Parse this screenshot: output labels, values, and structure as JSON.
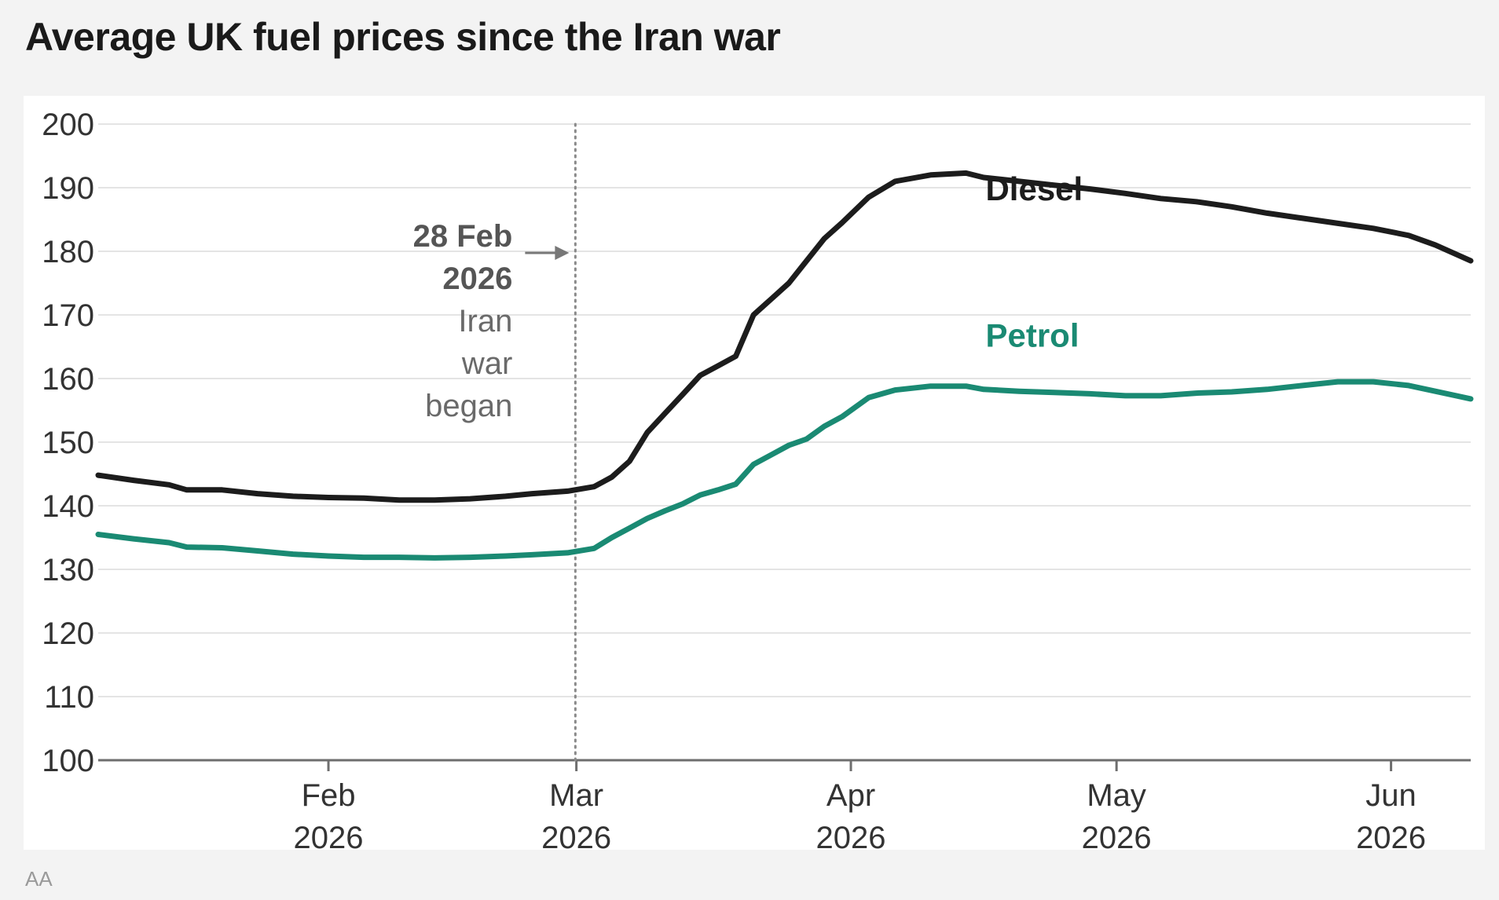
{
  "chart_data": {
    "type": "line",
    "title": "Average UK fuel prices since the Iran war",
    "xlabel": "",
    "ylabel": "",
    "ylim": [
      100,
      200
    ],
    "yticks": [
      100,
      110,
      120,
      130,
      140,
      150,
      160,
      170,
      180,
      190,
      200
    ],
    "grid": true,
    "x_axis_type": "date",
    "xlim": [
      "2026-01-06",
      "2026-06-10"
    ],
    "xticks": [
      {
        "date": "2026-02-01",
        "label_top": "Feb",
        "label_bottom": "2026"
      },
      {
        "date": "2026-03-01",
        "label_top": "Mar",
        "label_bottom": "2026"
      },
      {
        "date": "2026-04-01",
        "label_top": "Apr",
        "label_bottom": "2026"
      },
      {
        "date": "2026-05-01",
        "label_top": "May",
        "label_bottom": "2026"
      },
      {
        "date": "2026-06-01",
        "label_top": "Jun",
        "label_bottom": "2026"
      }
    ],
    "series": [
      {
        "name": "Diesel",
        "color": "#1c1c1c",
        "points": [
          [
            "2026-01-06",
            144.8
          ],
          [
            "2026-01-10",
            144.0
          ],
          [
            "2026-01-14",
            143.3
          ],
          [
            "2026-01-16",
            142.5
          ],
          [
            "2026-01-20",
            142.5
          ],
          [
            "2026-01-24",
            141.9
          ],
          [
            "2026-01-28",
            141.5
          ],
          [
            "2026-02-01",
            141.3
          ],
          [
            "2026-02-05",
            141.2
          ],
          [
            "2026-02-09",
            140.9
          ],
          [
            "2026-02-13",
            140.9
          ],
          [
            "2026-02-17",
            141.1
          ],
          [
            "2026-02-21",
            141.5
          ],
          [
            "2026-02-24",
            141.9
          ],
          [
            "2026-02-28",
            142.3
          ],
          [
            "2026-03-03",
            143.0
          ],
          [
            "2026-03-05",
            144.5
          ],
          [
            "2026-03-07",
            147.0
          ],
          [
            "2026-03-09",
            151.5
          ],
          [
            "2026-03-11",
            154.5
          ],
          [
            "2026-03-13",
            157.5
          ],
          [
            "2026-03-15",
            160.5
          ],
          [
            "2026-03-17",
            162.0
          ],
          [
            "2026-03-19",
            163.5
          ],
          [
            "2026-03-21",
            170.0
          ],
          [
            "2026-03-23",
            172.5
          ],
          [
            "2026-03-25",
            175.0
          ],
          [
            "2026-03-27",
            178.5
          ],
          [
            "2026-03-29",
            182.0
          ],
          [
            "2026-03-31",
            184.5
          ],
          [
            "2026-04-03",
            188.5
          ],
          [
            "2026-04-06",
            191.0
          ],
          [
            "2026-04-10",
            192.0
          ],
          [
            "2026-04-14",
            192.3
          ],
          [
            "2026-04-16",
            191.6
          ],
          [
            "2026-04-20",
            191.0
          ],
          [
            "2026-04-24",
            190.4
          ],
          [
            "2026-04-28",
            189.8
          ],
          [
            "2026-05-02",
            189.1
          ],
          [
            "2026-05-06",
            188.3
          ],
          [
            "2026-05-10",
            187.8
          ],
          [
            "2026-05-14",
            187.0
          ],
          [
            "2026-05-18",
            186.0
          ],
          [
            "2026-05-22",
            185.2
          ],
          [
            "2026-05-26",
            184.4
          ],
          [
            "2026-05-30",
            183.6
          ],
          [
            "2026-06-03",
            182.5
          ],
          [
            "2026-06-06",
            181.0
          ],
          [
            "2026-06-10",
            178.5
          ]
        ]
      },
      {
        "name": "Petrol",
        "color": "#1a8a73",
        "points": [
          [
            "2026-01-06",
            135.5
          ],
          [
            "2026-01-10",
            134.8
          ],
          [
            "2026-01-14",
            134.2
          ],
          [
            "2026-01-16",
            133.5
          ],
          [
            "2026-01-20",
            133.4
          ],
          [
            "2026-01-24",
            132.9
          ],
          [
            "2026-01-28",
            132.4
          ],
          [
            "2026-02-01",
            132.1
          ],
          [
            "2026-02-05",
            131.9
          ],
          [
            "2026-02-09",
            131.9
          ],
          [
            "2026-02-13",
            131.8
          ],
          [
            "2026-02-17",
            131.9
          ],
          [
            "2026-02-21",
            132.1
          ],
          [
            "2026-02-24",
            132.3
          ],
          [
            "2026-02-28",
            132.6
          ],
          [
            "2026-03-03",
            133.3
          ],
          [
            "2026-03-05",
            135.0
          ],
          [
            "2026-03-07",
            136.5
          ],
          [
            "2026-03-09",
            138.0
          ],
          [
            "2026-03-11",
            139.2
          ],
          [
            "2026-03-13",
            140.3
          ],
          [
            "2026-03-15",
            141.7
          ],
          [
            "2026-03-17",
            142.5
          ],
          [
            "2026-03-19",
            143.4
          ],
          [
            "2026-03-21",
            146.5
          ],
          [
            "2026-03-23",
            148.0
          ],
          [
            "2026-03-25",
            149.5
          ],
          [
            "2026-03-27",
            150.5
          ],
          [
            "2026-03-29",
            152.5
          ],
          [
            "2026-03-31",
            154.0
          ],
          [
            "2026-04-03",
            157.0
          ],
          [
            "2026-04-06",
            158.2
          ],
          [
            "2026-04-10",
            158.8
          ],
          [
            "2026-04-14",
            158.8
          ],
          [
            "2026-04-16",
            158.3
          ],
          [
            "2026-04-20",
            158.0
          ],
          [
            "2026-04-24",
            157.8
          ],
          [
            "2026-04-28",
            157.6
          ],
          [
            "2026-05-02",
            157.3
          ],
          [
            "2026-05-06",
            157.3
          ],
          [
            "2026-05-10",
            157.7
          ],
          [
            "2026-05-14",
            157.9
          ],
          [
            "2026-05-18",
            158.3
          ],
          [
            "2026-05-22",
            158.9
          ],
          [
            "2026-05-26",
            159.5
          ],
          [
            "2026-05-30",
            159.5
          ],
          [
            "2026-06-03",
            158.9
          ],
          [
            "2026-06-06",
            158.0
          ],
          [
            "2026-06-10",
            156.8
          ]
        ]
      }
    ],
    "annotations": [
      {
        "date": "2026-02-28",
        "bold_lines": [
          "28 Feb",
          "2026"
        ],
        "text_lines": [
          "Iran",
          "war",
          "began"
        ],
        "style": "dotted-vertical-line"
      }
    ],
    "series_labels": [
      {
        "series": "Diesel",
        "text": "Diesel",
        "near_date": "2026-04-10"
      },
      {
        "series": "Petrol",
        "text": "Petrol",
        "near_date": "2026-04-10"
      }
    ]
  },
  "source": "AA"
}
